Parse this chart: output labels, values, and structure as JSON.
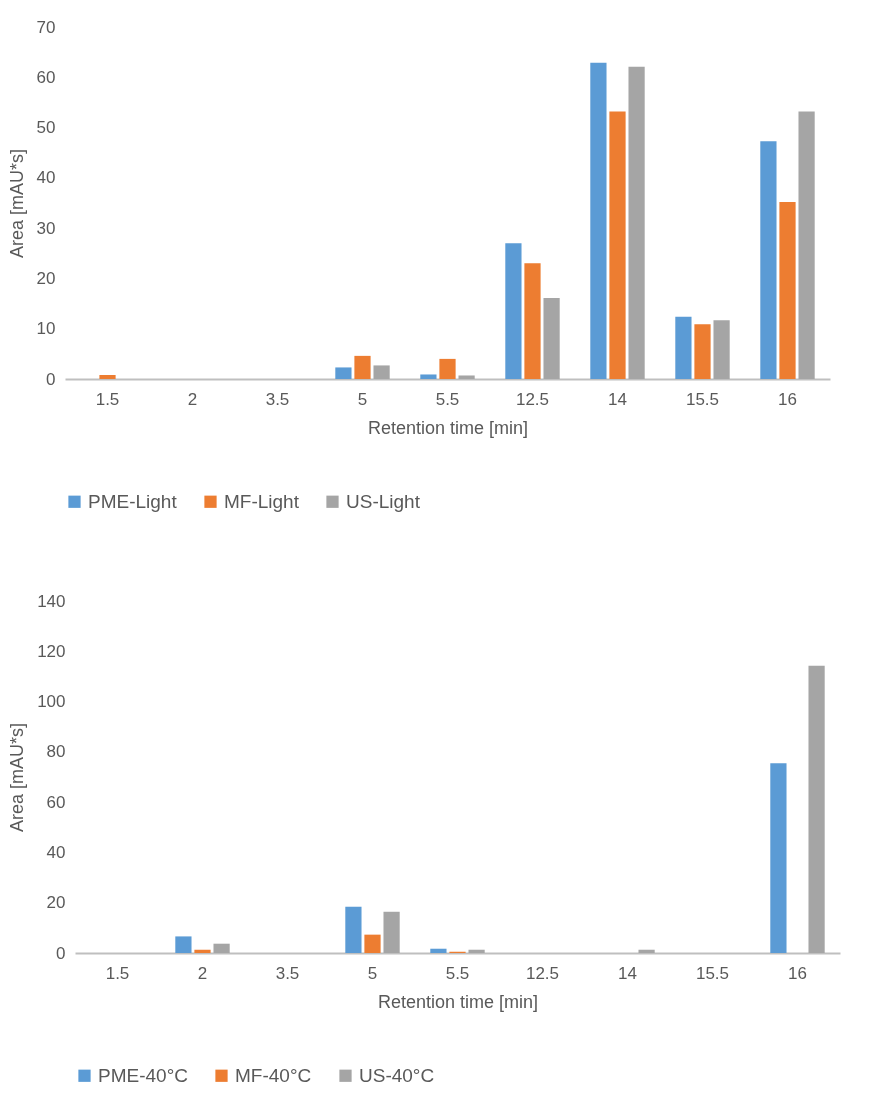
{
  "chart_data": [
    {
      "type": "bar",
      "categories": [
        "1.5",
        "2",
        "3.5",
        "5",
        "5.5",
        "12.5",
        "14",
        "15.5",
        "16"
      ],
      "xlabel": "Retention time [min]",
      "ylabel": "Area [mAU*s]",
      "ylim": [
        0,
        70
      ],
      "yticks": [
        0,
        10,
        20,
        30,
        40,
        50,
        60,
        70
      ],
      "grid": false,
      "legend": "bottom",
      "series": [
        {
          "name": "PME-Light",
          "color": "#5b9bd5",
          "values": [
            0,
            0,
            0,
            2.3,
            0.9,
            27.0,
            62.9,
            12.4,
            47.3
          ]
        },
        {
          "name": "MF-Light",
          "color": "#ed7d31",
          "values": [
            0.8,
            0,
            0,
            4.6,
            4.0,
            23.0,
            53.2,
            10.9,
            35.2
          ]
        },
        {
          "name": "US-Light",
          "color": "#a5a5a5",
          "values": [
            0,
            0,
            0,
            2.7,
            0.7,
            16.1,
            62.1,
            11.7,
            53.2
          ]
        }
      ]
    },
    {
      "type": "bar",
      "categories": [
        "1.5",
        "2",
        "3.5",
        "5",
        "5.5",
        "12.5",
        "14",
        "15.5",
        "16"
      ],
      "xlabel": "Retention time [min]",
      "ylabel": "Area [mAU*s]",
      "ylim": [
        0,
        140
      ],
      "yticks": [
        0,
        20,
        40,
        60,
        80,
        100,
        120,
        140
      ],
      "grid": false,
      "legend": "bottom",
      "series": [
        {
          "name": "PME-40°C",
          "color": "#5b9bd5",
          "values": [
            0,
            6.6,
            0,
            18.4,
            1.7,
            0,
            0,
            0,
            75.5
          ]
        },
        {
          "name": "MF-40°C",
          "color": "#ed7d31",
          "values": [
            0,
            1.3,
            0,
            7.3,
            0.5,
            0,
            0,
            0,
            0
          ]
        },
        {
          "name": "US-40°C",
          "color": "#a5a5a5",
          "values": [
            0,
            3.7,
            0,
            16.4,
            1.3,
            0,
            1.3,
            0,
            114.2
          ]
        }
      ]
    }
  ]
}
